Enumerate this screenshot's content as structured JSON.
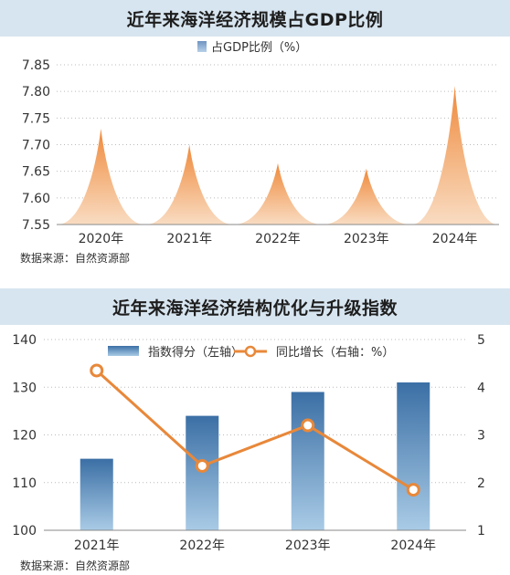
{
  "chart_data": [
    {
      "type": "area",
      "title": "近年来海洋经济规模占GDP比例",
      "categories": [
        "2020年",
        "2021年",
        "2022年",
        "2023年",
        "2024年"
      ],
      "series": [
        {
          "name": "占GDP比例（%）",
          "values": [
            7.73,
            7.7,
            7.665,
            7.655,
            7.81
          ]
        }
      ],
      "ylim": [
        7.55,
        7.85
      ],
      "yticks": [
        "7.55",
        "7.60",
        "7.65",
        "7.70",
        "7.75",
        "7.80",
        "7.85"
      ],
      "legend_position": "top-center",
      "source": "数据来源：自然资源部",
      "colors": {
        "peak_top": "#ef8a3c",
        "peak_bottom": "#f9dcc2"
      }
    },
    {
      "type": "bar",
      "title": "近年来海洋经济结构优化与升级指数",
      "categories": [
        "2021年",
        "2022年",
        "2023年",
        "2024年"
      ],
      "series": [
        {
          "name": "指数得分（左轴）",
          "type": "bar",
          "axis": "left",
          "values": [
            115,
            124,
            129,
            131
          ]
        },
        {
          "name": "同比增长（右轴：%）",
          "type": "line",
          "axis": "right",
          "values": [
            4.35,
            2.35,
            3.2,
            1.85
          ]
        }
      ],
      "ylim_left": [
        100,
        140
      ],
      "yticks_left": [
        "100",
        "110",
        "120",
        "130",
        "140"
      ],
      "ylim_right": [
        1,
        5
      ],
      "yticks_right": [
        "1",
        "2",
        "3",
        "4",
        "5"
      ],
      "legend_position": "top-center",
      "source": "数据来源：自然资源部",
      "colors": {
        "bar_top": "#3b6fa5",
        "bar_bottom": "#a9cbe6",
        "line": "#e8883a"
      }
    }
  ]
}
